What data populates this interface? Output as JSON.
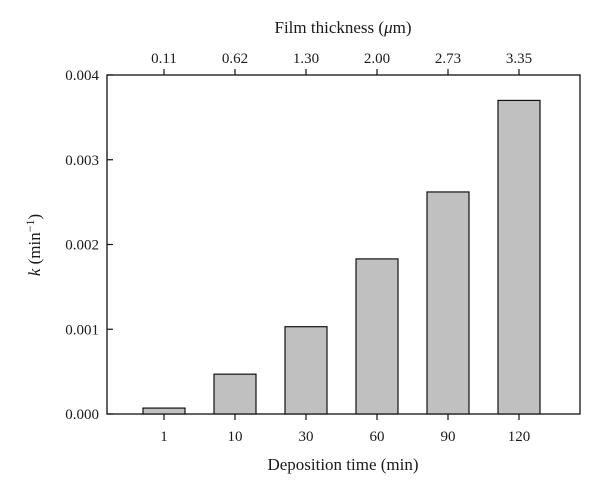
{
  "chart_data": {
    "type": "bar",
    "categories": [
      "1",
      "10",
      "30",
      "60",
      "90",
      "120"
    ],
    "values": [
      7e-05,
      0.00047,
      0.00103,
      0.00183,
      0.00262,
      0.0037
    ],
    "top_categories": [
      "0.11",
      "0.62",
      "1.30",
      "2.00",
      "2.73",
      "3.35"
    ],
    "title": "",
    "xlabel": "Deposition time (min)",
    "top_xlabel_prefix": "Film thickness (",
    "top_xlabel_unit": "μ",
    "top_xlabel_suffix": "m)",
    "ylabel_var": "k",
    "ylabel_unit": " (min",
    "ylabel_exp": "−1",
    "ylabel_close": ")",
    "ylim": [
      0,
      0.004
    ],
    "yticks": [
      "0.000",
      "0.001",
      "0.002",
      "0.003",
      "0.004"
    ],
    "grid": false,
    "legend": "none",
    "bar_color": "#c0c0c0"
  }
}
